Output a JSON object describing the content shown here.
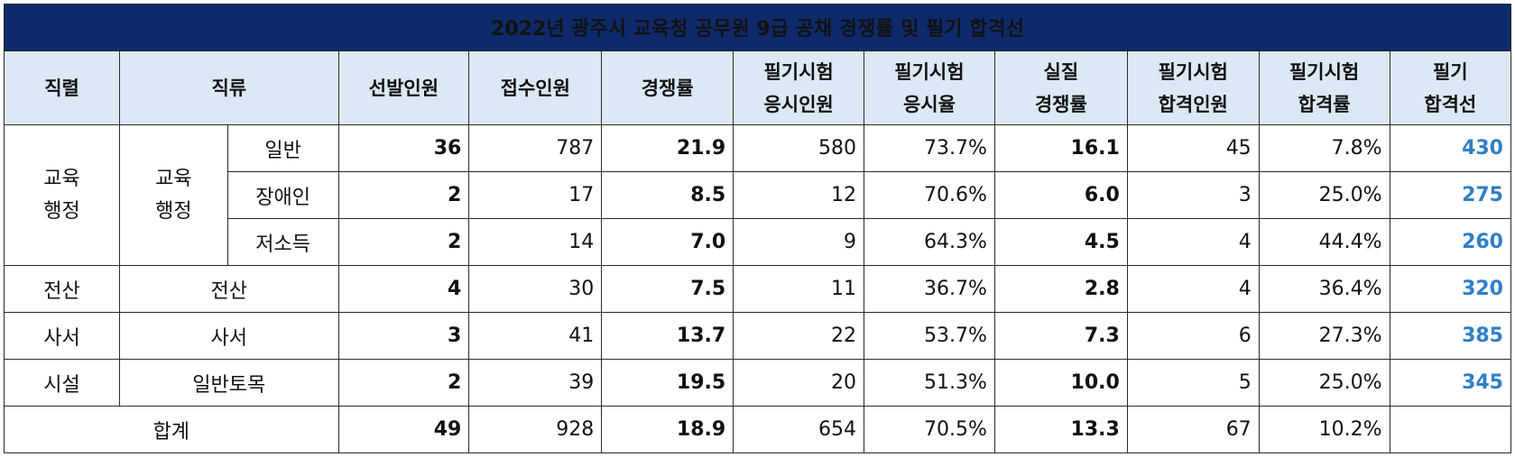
{
  "title": "2022년 광주시 교육청 공무원 9급 공채 경쟁률 및 필기 합격선",
  "headers": {
    "jikryeol": "직렬",
    "jikryu": "직류",
    "seonbal": "선발인원",
    "jeopsu": "접수인원",
    "gyeongjaeng": "경쟁률",
    "eungsi_inwon_1": "필기시험",
    "eungsi_inwon_2": "응시인원",
    "eungsi_yul_1": "필기시험",
    "eungsi_yul_2": "응시율",
    "silji_1": "실질",
    "silji_2": "경쟁률",
    "hapgyeok_inwon_1": "필기시험",
    "hapgyeok_inwon_2": "합격인원",
    "hapgyeok_yul_1": "필기시험",
    "hapgyeok_yul_2": "합격률",
    "hapgyeokseon_1": "필기",
    "hapgyeokseon_2": "합격선"
  },
  "groups": {
    "gyoyuk_jikryeol_1": "교육",
    "gyoyuk_jikryeol_2": "행정",
    "gyoyuk_jikryu_1": "교육",
    "gyoyuk_jikryu_2": "행정"
  },
  "rows": [
    {
      "jikryeol": "",
      "jikryu": "일반",
      "seonbal": "36",
      "jeopsu": "787",
      "gyeongjaeng": "21.9",
      "eungsi_inwon": "580",
      "eungsi_yul": "73.7%",
      "silji": "16.1",
      "hapgyeok_inwon": "45",
      "hapgyeok_yul": "7.8%",
      "hapgyeokseon": "430"
    },
    {
      "jikryeol": "",
      "jikryu": "장애인",
      "seonbal": "2",
      "jeopsu": "17",
      "gyeongjaeng": "8.5",
      "eungsi_inwon": "12",
      "eungsi_yul": "70.6%",
      "silji": "6.0",
      "hapgyeok_inwon": "3",
      "hapgyeok_yul": "25.0%",
      "hapgyeokseon": "275"
    },
    {
      "jikryeol": "",
      "jikryu": "저소득",
      "seonbal": "2",
      "jeopsu": "14",
      "gyeongjaeng": "7.0",
      "eungsi_inwon": "9",
      "eungsi_yul": "64.3%",
      "silji": "4.5",
      "hapgyeok_inwon": "4",
      "hapgyeok_yul": "44.4%",
      "hapgyeokseon": "260"
    },
    {
      "jikryeol": "전산",
      "jikryu": "전산",
      "seonbal": "4",
      "jeopsu": "30",
      "gyeongjaeng": "7.5",
      "eungsi_inwon": "11",
      "eungsi_yul": "36.7%",
      "silji": "2.8",
      "hapgyeok_inwon": "4",
      "hapgyeok_yul": "36.4%",
      "hapgyeokseon": "320"
    },
    {
      "jikryeol": "사서",
      "jikryu": "사서",
      "seonbal": "3",
      "jeopsu": "41",
      "gyeongjaeng": "13.7",
      "eungsi_inwon": "22",
      "eungsi_yul": "53.7%",
      "silji": "7.3",
      "hapgyeok_inwon": "6",
      "hapgyeok_yul": "27.3%",
      "hapgyeokseon": "385"
    },
    {
      "jikryeol": "시설",
      "jikryu": "일반토목",
      "seonbal": "2",
      "jeopsu": "39",
      "gyeongjaeng": "19.5",
      "eungsi_inwon": "20",
      "eungsi_yul": "51.3%",
      "silji": "10.0",
      "hapgyeok_inwon": "5",
      "hapgyeok_yul": "25.0%",
      "hapgyeokseon": "345"
    }
  ],
  "total": {
    "label": "합계",
    "seonbal": "49",
    "jeopsu": "928",
    "gyeongjaeng": "18.9",
    "eungsi_inwon": "654",
    "eungsi_yul": "70.5%",
    "silji": "13.3",
    "hapgyeok_inwon": "67",
    "hapgyeok_yul": "10.2%",
    "hapgyeokseon": ""
  },
  "colors": {
    "title_bg": "#0e2a6a",
    "header_bg": "#dce8f5",
    "cutoff_text": "#2f7fc6"
  }
}
